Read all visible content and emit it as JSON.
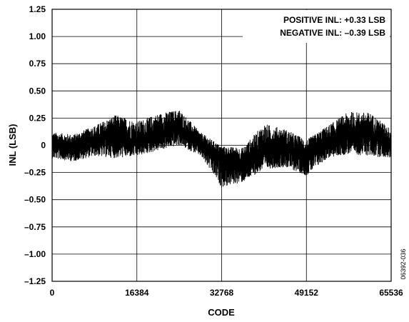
{
  "chart_data": {
    "type": "line",
    "xlabel": "CODE",
    "ylabel": "INL (LSB)",
    "xlim": [
      0,
      65536
    ],
    "ylim": [
      -1.25,
      1.25
    ],
    "x_ticks": [
      0,
      16384,
      32768,
      49152,
      65536
    ],
    "x_tick_labels": [
      "0",
      "16384",
      "32768",
      "49152",
      "65536"
    ],
    "y_ticks": [
      1.25,
      1.0,
      0.75,
      0.5,
      0.25,
      0,
      -0.25,
      -0.5,
      -0.75,
      -1.0,
      -1.25
    ],
    "y_tick_labels": [
      "1.25",
      "1.00",
      "0.75",
      "0.50",
      "0.25",
      "0",
      "–0.25",
      "–0.50",
      "–0.75",
      "–1.00",
      "–1.25"
    ],
    "grid": true,
    "annotations": [
      "POSITIVE INL: +0.33 LSB",
      "NEGATIVE INL: –0.39 LSB"
    ],
    "figure_id": "06392-036",
    "series": [
      {
        "color": "#000000",
        "x": [
          0,
          4096,
          8192,
          12288,
          16384,
          20480,
          24576,
          28672,
          32768,
          36864,
          40960,
          45056,
          49152,
          53248,
          57344,
          61440,
          65536
        ],
        "y_mid": [
          0.0,
          -0.02,
          0.04,
          0.08,
          0.02,
          0.1,
          0.15,
          0.02,
          -0.1,
          -0.18,
          -0.06,
          -0.03,
          -0.1,
          0.03,
          0.08,
          0.12,
          0.02
        ],
        "y_max": [
          0.12,
          0.1,
          0.18,
          0.28,
          0.22,
          0.29,
          0.33,
          0.12,
          -0.01,
          -0.02,
          0.2,
          0.15,
          0.05,
          0.18,
          0.31,
          0.3,
          0.15
        ],
        "y_min": [
          -0.12,
          -0.15,
          -0.1,
          -0.12,
          -0.1,
          -0.05,
          0.0,
          -0.1,
          -0.39,
          -0.34,
          -0.22,
          -0.2,
          -0.28,
          -0.12,
          -0.08,
          -0.1,
          -0.12
        ]
      }
    ]
  }
}
